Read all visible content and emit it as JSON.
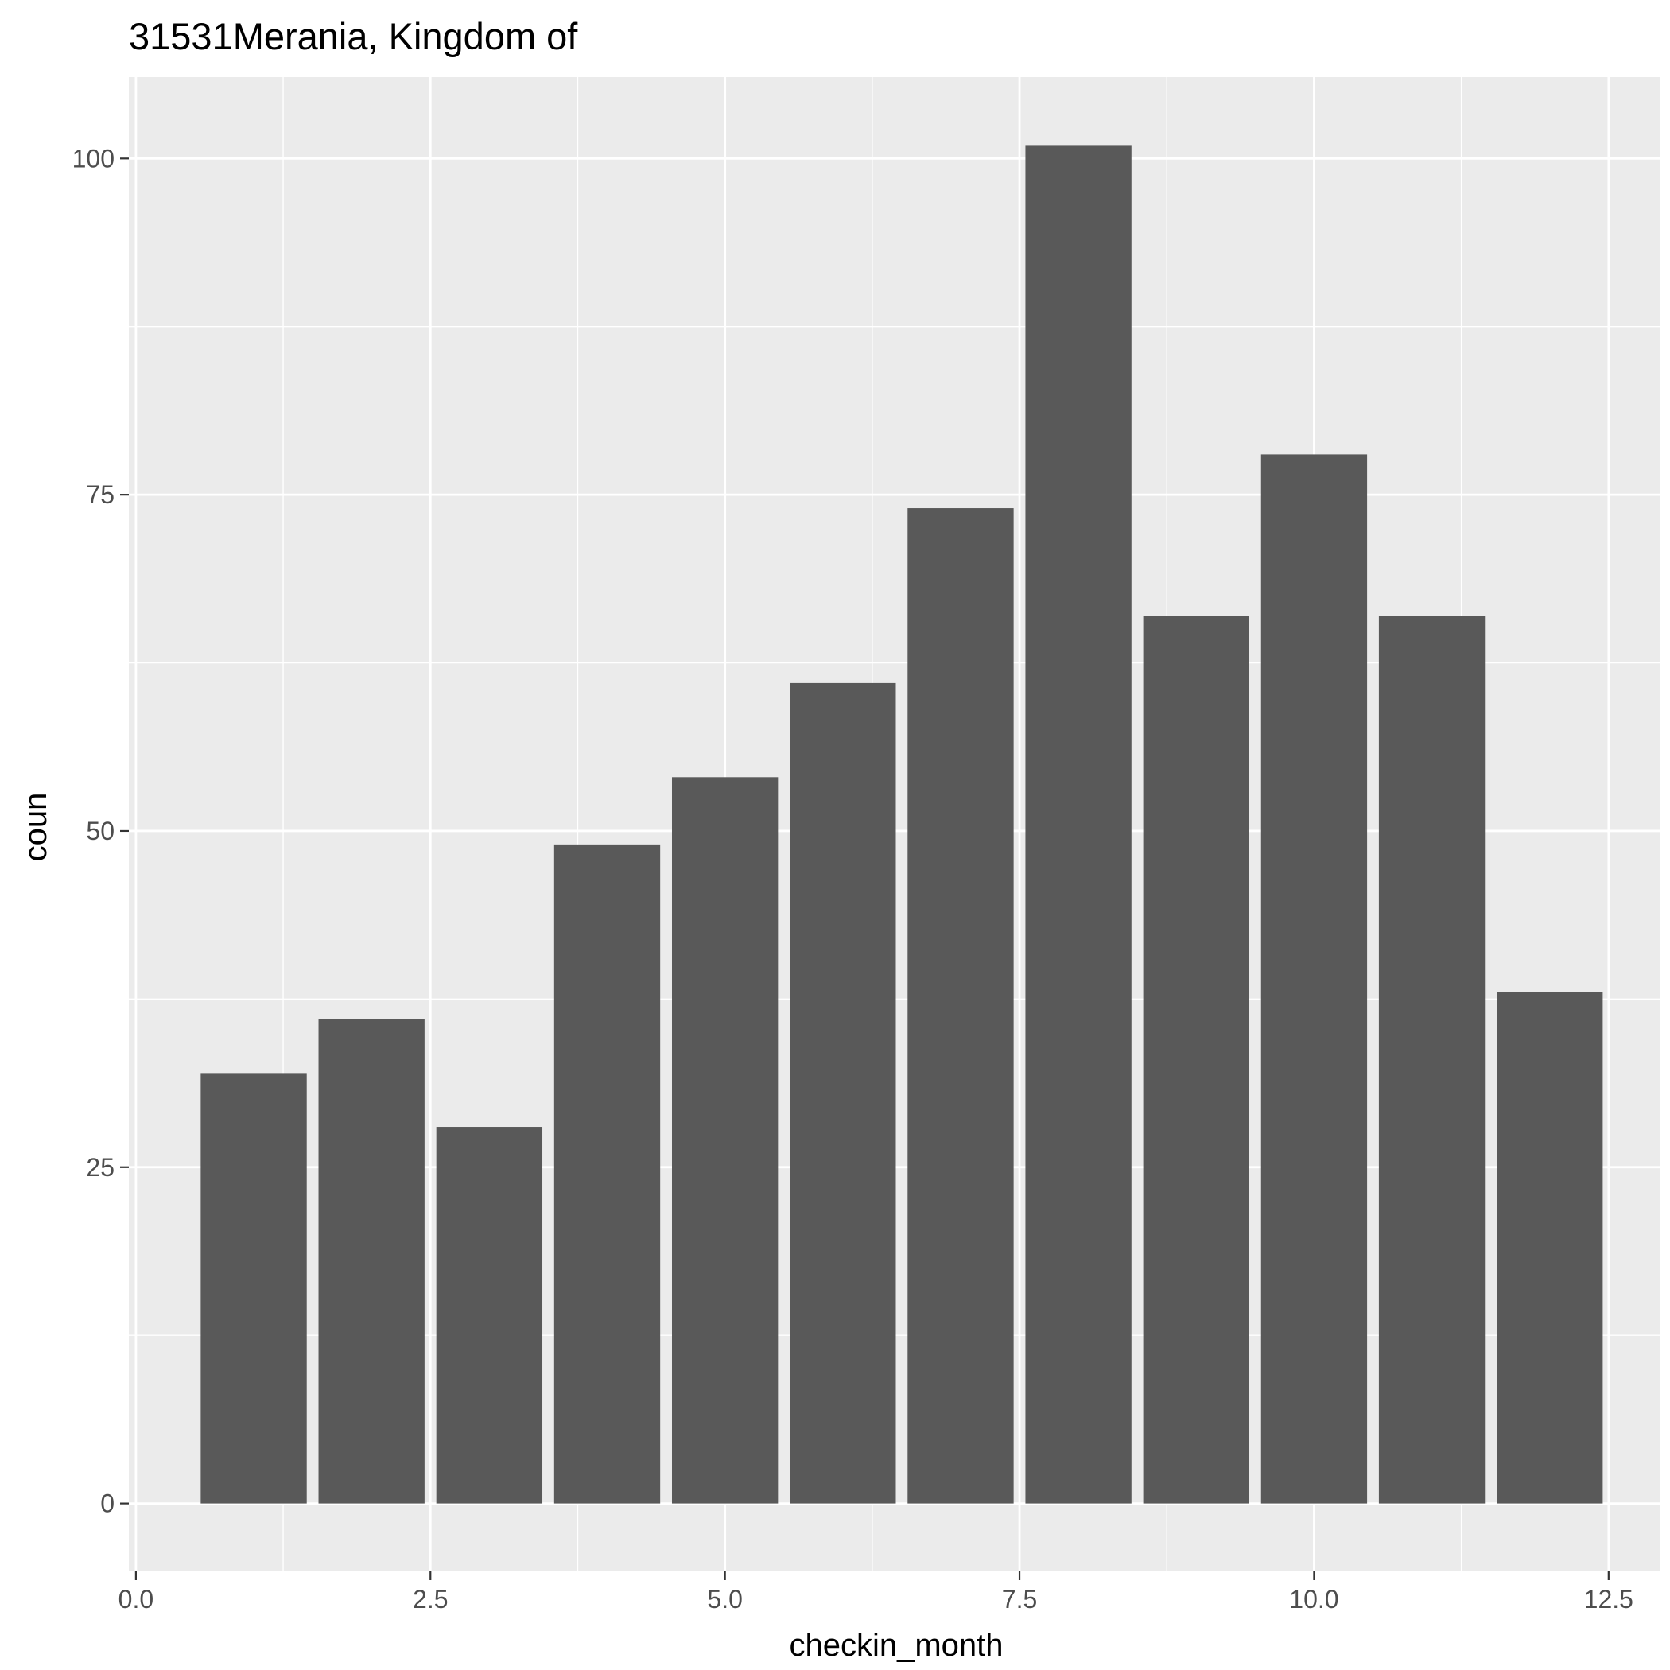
{
  "chart_data": {
    "type": "bar",
    "title": "31531Merania, Kingdom of",
    "xlabel": "checkin_month",
    "ylabel": "coun",
    "x": [
      1,
      2,
      3,
      4,
      5,
      6,
      7,
      8,
      9,
      10,
      11,
      12
    ],
    "values": [
      32,
      36,
      28,
      49,
      54,
      61,
      74,
      101,
      66,
      78,
      66,
      38
    ],
    "bar_width": 0.9,
    "xlim": [
      -0.06,
      12.94
    ],
    "ylim": [
      -5.05,
      106.05
    ],
    "x_ticks": [
      0.0,
      2.5,
      5.0,
      7.5,
      10.0,
      12.5
    ],
    "x_tick_labels": [
      "0.0",
      "2.5",
      "5.0",
      "7.5",
      "10.0",
      "12.5"
    ],
    "y_ticks": [
      0,
      25,
      50,
      75,
      100
    ],
    "y_tick_labels": [
      "0",
      "25",
      "50",
      "75",
      "100"
    ],
    "grid": true,
    "legend": "none",
    "colors": {
      "panel_background": "#ebebeb",
      "grid": "#ffffff",
      "bar_fill": "#595959",
      "tick_text": "#4d4d4d",
      "tick_mark": "#333333",
      "title_text": "#000000"
    }
  }
}
